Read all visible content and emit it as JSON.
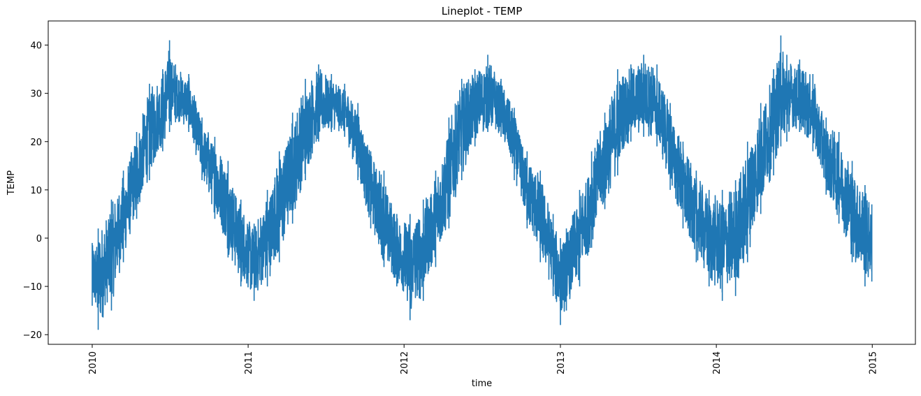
{
  "chart_data": {
    "type": "line",
    "title": "Lineplot - TEMP",
    "xlabel": "time",
    "ylabel": "TEMP",
    "x_ticks": [
      "2010",
      "2011",
      "2012",
      "2013",
      "2014",
      "2015"
    ],
    "y_ticks": [
      -20,
      -10,
      0,
      10,
      20,
      30,
      40
    ],
    "xlim": [
      "2009-09-20",
      "2015-04-12"
    ],
    "ylim": [
      -22,
      45
    ],
    "grid": false,
    "legend": "none",
    "series": [
      {
        "color": "#1f77b4",
        "note_sampling": "monthly envelope read from chart",
        "x": [
          "2010-01-01",
          "2010-01-15",
          "2010-02-15",
          "2010-03-15",
          "2010-04-15",
          "2010-05-15",
          "2010-06-15",
          "2010-07-01",
          "2010-07-15",
          "2010-08-15",
          "2010-09-15",
          "2010-10-15",
          "2010-11-15",
          "2010-12-15",
          "2011-01-15",
          "2011-02-15",
          "2011-03-15",
          "2011-04-15",
          "2011-05-15",
          "2011-06-15",
          "2011-07-15",
          "2011-08-15",
          "2011-09-15",
          "2011-10-15",
          "2011-11-15",
          "2011-12-15",
          "2012-01-15",
          "2012-02-15",
          "2012-03-15",
          "2012-04-15",
          "2012-05-15",
          "2012-06-15",
          "2012-07-15",
          "2012-08-15",
          "2012-09-15",
          "2012-10-15",
          "2012-11-15",
          "2012-12-15",
          "2013-01-01",
          "2013-01-15",
          "2013-02-15",
          "2013-03-15",
          "2013-04-15",
          "2013-05-15",
          "2013-06-15",
          "2013-07-15",
          "2013-08-15",
          "2013-09-15",
          "2013-10-15",
          "2013-11-15",
          "2013-12-15",
          "2014-01-15",
          "2014-02-15",
          "2014-03-15",
          "2014-04-15",
          "2014-05-15",
          "2014-06-01",
          "2014-06-15",
          "2014-07-15",
          "2014-08-15",
          "2014-09-15",
          "2014-10-15",
          "2014-11-15",
          "2014-12-15",
          "2014-12-31"
        ],
        "max": [
          -1,
          2,
          8,
          14,
          22,
          32,
          35,
          41,
          36,
          34,
          25,
          21,
          16,
          8,
          3,
          10,
          18,
          26,
          33,
          36,
          34,
          32,
          28,
          18,
          14,
          5,
          5,
          8,
          14,
          25,
          33,
          35,
          38,
          33,
          27,
          18,
          14,
          5,
          0,
          2,
          10,
          18,
          26,
          35,
          36,
          38,
          36,
          28,
          20,
          14,
          10,
          10,
          12,
          20,
          28,
          35,
          42,
          38,
          37,
          34,
          25,
          22,
          16,
          11,
          7
        ],
        "min": [
          -14,
          -19,
          -15,
          -5,
          4,
          12,
          18,
          22,
          24,
          22,
          12,
          4,
          -4,
          -10,
          -13,
          -10,
          -5,
          3,
          12,
          20,
          22,
          21,
          12,
          2,
          -6,
          -10,
          -17,
          -13,
          -6,
          2,
          12,
          19,
          22,
          21,
          12,
          2,
          -5,
          -12,
          -18,
          -15,
          -10,
          -2,
          6,
          13,
          20,
          21,
          19,
          10,
          2,
          -5,
          -10,
          -13,
          -12,
          -5,
          5,
          13,
          19,
          20,
          22,
          18,
          9,
          3,
          -5,
          -10,
          -9
        ]
      }
    ]
  }
}
